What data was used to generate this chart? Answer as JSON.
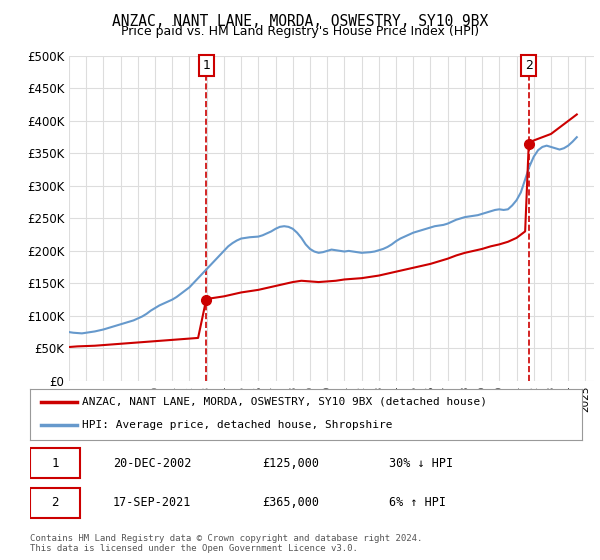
{
  "title": "ANZAC, NANT LANE, MORDA, OSWESTRY, SY10 9BX",
  "subtitle": "Price paid vs. HM Land Registry's House Price Index (HPI)",
  "title_fontsize": 11,
  "subtitle_fontsize": 9.5,
  "ylim": [
    0,
    500000
  ],
  "yticks": [
    0,
    50000,
    100000,
    150000,
    200000,
    250000,
    300000,
    350000,
    400000,
    450000,
    500000
  ],
  "ytick_labels": [
    "£0",
    "£50K",
    "£100K",
    "£150K",
    "£200K",
    "£250K",
    "£300K",
    "£350K",
    "£400K",
    "£450K",
    "£500K"
  ],
  "xlim_start": 1995.0,
  "xlim_end": 2025.5,
  "line_color_red": "#cc0000",
  "line_color_blue": "#6699cc",
  "marker_color_red": "#cc0000",
  "dashed_line_color": "#cc0000",
  "grid_color": "#dddddd",
  "background_color": "#ffffff",
  "legend_label_red": "ANZAC, NANT LANE, MORDA, OSWESTRY, SY10 9BX (detached house)",
  "legend_label_blue": "HPI: Average price, detached house, Shropshire",
  "point1_label": "1",
  "point1_date": "20-DEC-2002",
  "point1_price": "£125,000",
  "point1_pct": "30% ↓ HPI",
  "point1_x": 2002.97,
  "point1_y": 125000,
  "point2_label": "2",
  "point2_date": "17-SEP-2021",
  "point2_price": "£365,000",
  "point2_pct": "6% ↑ HPI",
  "point2_x": 2021.71,
  "point2_y": 365000,
  "footnote": "Contains HM Land Registry data © Crown copyright and database right 2024.\nThis data is licensed under the Open Government Licence v3.0.",
  "hpi_years": [
    1995.0,
    1995.25,
    1995.5,
    1995.75,
    1996.0,
    1996.25,
    1996.5,
    1996.75,
    1997.0,
    1997.25,
    1997.5,
    1997.75,
    1998.0,
    1998.25,
    1998.5,
    1998.75,
    1999.0,
    1999.25,
    1999.5,
    1999.75,
    2000.0,
    2000.25,
    2000.5,
    2000.75,
    2001.0,
    2001.25,
    2001.5,
    2001.75,
    2002.0,
    2002.25,
    2002.5,
    2002.75,
    2003.0,
    2003.25,
    2003.5,
    2003.75,
    2004.0,
    2004.25,
    2004.5,
    2004.75,
    2005.0,
    2005.25,
    2005.5,
    2005.75,
    2006.0,
    2006.25,
    2006.5,
    2006.75,
    2007.0,
    2007.25,
    2007.5,
    2007.75,
    2008.0,
    2008.25,
    2008.5,
    2008.75,
    2009.0,
    2009.25,
    2009.5,
    2009.75,
    2010.0,
    2010.25,
    2010.5,
    2010.75,
    2011.0,
    2011.25,
    2011.5,
    2011.75,
    2012.0,
    2012.25,
    2012.5,
    2012.75,
    2013.0,
    2013.25,
    2013.5,
    2013.75,
    2014.0,
    2014.25,
    2014.5,
    2014.75,
    2015.0,
    2015.25,
    2015.5,
    2015.75,
    2016.0,
    2016.25,
    2016.5,
    2016.75,
    2017.0,
    2017.25,
    2017.5,
    2017.75,
    2018.0,
    2018.25,
    2018.5,
    2018.75,
    2019.0,
    2019.25,
    2019.5,
    2019.75,
    2020.0,
    2020.25,
    2020.5,
    2020.75,
    2021.0,
    2021.25,
    2021.5,
    2021.75,
    2022.0,
    2022.25,
    2022.5,
    2022.75,
    2023.0,
    2023.25,
    2023.5,
    2023.75,
    2024.0,
    2024.25,
    2024.5
  ],
  "hpi_values": [
    75000,
    74000,
    73500,
    73000,
    74000,
    75000,
    76000,
    77500,
    79000,
    81000,
    83000,
    85000,
    87000,
    89000,
    91000,
    93000,
    96000,
    99000,
    103000,
    108000,
    112000,
    116000,
    119000,
    122000,
    125000,
    129000,
    134000,
    139000,
    144000,
    151000,
    158000,
    165000,
    172000,
    179000,
    186000,
    193000,
    200000,
    207000,
    212000,
    216000,
    219000,
    220000,
    221000,
    221500,
    222000,
    224000,
    227000,
    230000,
    234000,
    237000,
    238000,
    237000,
    234000,
    228000,
    220000,
    210000,
    203000,
    199000,
    197000,
    198000,
    200000,
    202000,
    201000,
    200000,
    199000,
    200000,
    199000,
    198000,
    197000,
    197500,
    198000,
    199000,
    201000,
    203000,
    206000,
    210000,
    215000,
    219000,
    222000,
    225000,
    228000,
    230000,
    232000,
    234000,
    236000,
    238000,
    239000,
    240000,
    242000,
    245000,
    248000,
    250000,
    252000,
    253000,
    254000,
    255000,
    257000,
    259000,
    261000,
    263000,
    264000,
    263000,
    264000,
    270000,
    278000,
    290000,
    310000,
    330000,
    345000,
    355000,
    360000,
    362000,
    360000,
    358000,
    356000,
    358000,
    362000,
    368000,
    375000
  ],
  "red_years": [
    1995.0,
    1995.5,
    1996.0,
    1996.5,
    1997.0,
    1997.5,
    1998.0,
    1998.5,
    1999.0,
    1999.5,
    2000.0,
    2000.5,
    2001.0,
    2001.5,
    2002.0,
    2002.5,
    2002.97,
    2003.0,
    2003.5,
    2004.0,
    2004.5,
    2005.0,
    2005.5,
    2006.0,
    2006.5,
    2007.0,
    2007.5,
    2008.0,
    2008.5,
    2009.0,
    2009.5,
    2010.0,
    2010.5,
    2011.0,
    2011.5,
    2012.0,
    2012.5,
    2013.0,
    2013.5,
    2014.0,
    2014.5,
    2015.0,
    2015.5,
    2016.0,
    2016.5,
    2017.0,
    2017.5,
    2018.0,
    2018.5,
    2019.0,
    2019.5,
    2020.0,
    2020.5,
    2021.0,
    2021.5,
    2021.71,
    2022.0,
    2022.5,
    2023.0,
    2023.5,
    2024.0,
    2024.5
  ],
  "red_values": [
    52000,
    53000,
    53500,
    54000,
    55000,
    56000,
    57000,
    58000,
    59000,
    60000,
    61000,
    62000,
    63000,
    64000,
    65000,
    66000,
    125000,
    126000,
    128000,
    130000,
    133000,
    136000,
    138000,
    140000,
    143000,
    146000,
    149000,
    152000,
    154000,
    153000,
    152000,
    153000,
    154000,
    156000,
    157000,
    158000,
    160000,
    162000,
    165000,
    168000,
    171000,
    174000,
    177000,
    180000,
    184000,
    188000,
    193000,
    197000,
    200000,
    203000,
    207000,
    210000,
    214000,
    220000,
    230000,
    365000,
    370000,
    375000,
    380000,
    390000,
    400000,
    410000
  ]
}
